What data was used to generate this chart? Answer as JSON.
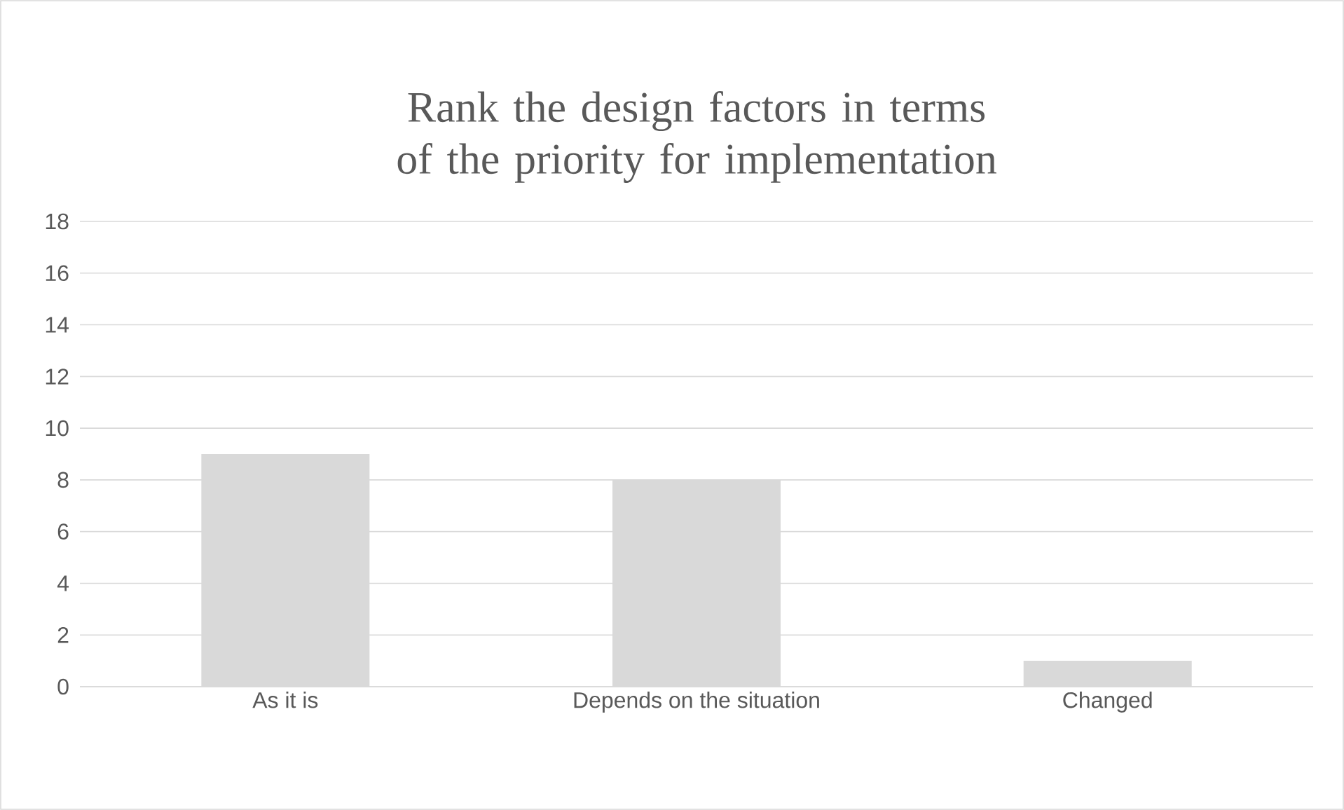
{
  "chart_data": {
    "type": "bar",
    "title": "Rank the design factors in terms of the priority for implementation",
    "categories": [
      "As it is",
      "Depends on the  situation",
      "Changed"
    ],
    "values": [
      9,
      8,
      1
    ],
    "color": "#d9d9d9",
    "ylim": [
      0,
      18
    ],
    "yticks": [
      0,
      2,
      4,
      6,
      8,
      10,
      12,
      14,
      16,
      18
    ],
    "grid": "y"
  }
}
